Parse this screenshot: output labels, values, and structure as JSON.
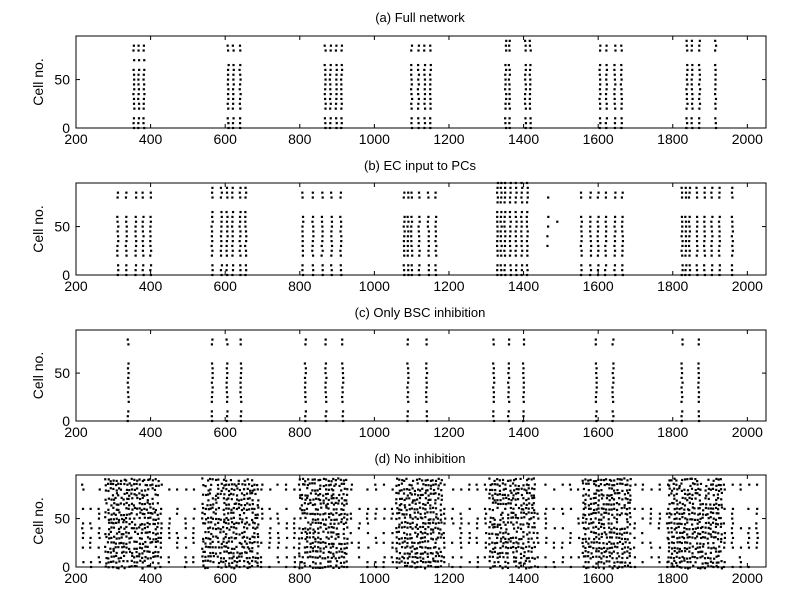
{
  "chart_data": [
    {
      "type": "scatter",
      "title": "(a) Full network",
      "xlabel": "",
      "ylabel": "Cell no.",
      "xlim": [
        200,
        2050
      ],
      "ylim": [
        0,
        95
      ],
      "xticks": [
        200,
        400,
        600,
        800,
        1000,
        1200,
        1400,
        1600,
        1800,
        2000
      ],
      "yticks": [
        0,
        50
      ],
      "grid": false,
      "description": "spike raster",
      "bursts": [
        {
          "times": [
            355,
            368,
            382
          ],
          "cells": [
            0,
            5,
            10,
            20,
            25,
            30,
            35,
            40,
            45,
            50,
            55,
            60,
            70,
            80,
            85
          ]
        },
        {
          "times": [
            608,
            622,
            640
          ],
          "cells": [
            0,
            5,
            10,
            20,
            25,
            30,
            35,
            40,
            45,
            50,
            55,
            60,
            65,
            80,
            85
          ]
        },
        {
          "times": [
            868,
            882,
            898,
            912
          ],
          "cells": [
            0,
            5,
            10,
            20,
            25,
            30,
            35,
            40,
            45,
            50,
            55,
            60,
            65,
            80,
            85
          ]
        },
        {
          "times": [
            1100,
            1118,
            1135,
            1150
          ],
          "cells": [
            0,
            5,
            10,
            20,
            25,
            30,
            35,
            40,
            45,
            50,
            55,
            60,
            65,
            80,
            85
          ]
        },
        {
          "times": [
            1352,
            1362,
            1405,
            1418
          ],
          "cells": [
            0,
            5,
            10,
            20,
            25,
            30,
            35,
            40,
            45,
            50,
            55,
            60,
            65,
            80,
            85,
            90
          ]
        },
        {
          "times": [
            1605,
            1622,
            1645,
            1662
          ],
          "cells": [
            0,
            5,
            10,
            20,
            25,
            30,
            35,
            40,
            45,
            50,
            55,
            60,
            65,
            80,
            85
          ]
        },
        {
          "times": [
            1838,
            1852,
            1872,
            1915
          ],
          "cells": [
            0,
            5,
            10,
            20,
            25,
            30,
            35,
            40,
            45,
            50,
            55,
            60,
            65,
            80,
            85,
            90
          ]
        }
      ]
    },
    {
      "type": "scatter",
      "title": "(b) EC input to PCs",
      "xlabel": "",
      "ylabel": "Cell no.",
      "xlim": [
        200,
        2050
      ],
      "ylim": [
        0,
        95
      ],
      "xticks": [
        200,
        400,
        600,
        800,
        1000,
        1200,
        1400,
        1600,
        1800,
        2000
      ],
      "yticks": [
        0,
        50
      ],
      "grid": false,
      "bursts": [
        {
          "times": [
            312,
            335,
            360,
            380,
            400
          ],
          "cells": [
            0,
            5,
            10,
            20,
            25,
            30,
            35,
            40,
            45,
            50,
            55,
            60,
            80,
            85
          ]
        },
        {
          "times": [
            565,
            590,
            605,
            620,
            640,
            655
          ],
          "cells": [
            0,
            5,
            10,
            20,
            25,
            30,
            35,
            40,
            45,
            50,
            55,
            60,
            65,
            80,
            85,
            90
          ]
        },
        {
          "times": [
            808,
            835,
            860,
            885,
            910
          ],
          "cells": [
            0,
            5,
            10,
            20,
            25,
            30,
            35,
            40,
            45,
            50,
            55,
            60,
            80,
            85
          ]
        },
        {
          "times": [
            1080,
            1090,
            1100,
            1120,
            1145,
            1165
          ],
          "cells": [
            0,
            5,
            10,
            20,
            25,
            30,
            35,
            40,
            45,
            50,
            55,
            60,
            80,
            85
          ]
        },
        {
          "times": [
            1330,
            1340,
            1350,
            1365,
            1380,
            1395,
            1410
          ],
          "cells": [
            0,
            5,
            10,
            20,
            25,
            30,
            35,
            40,
            45,
            50,
            55,
            60,
            65,
            75,
            80,
            85,
            90,
            95
          ]
        },
        {
          "times": [
            1465
          ],
          "cells": [
            30,
            40,
            50,
            60,
            80
          ]
        },
        {
          "times": [
            1490
          ],
          "cells": [
            55
          ]
        },
        {
          "times": [
            1555,
            1580,
            1600,
            1620,
            1645,
            1665
          ],
          "cells": [
            0,
            5,
            10,
            20,
            25,
            30,
            35,
            40,
            45,
            50,
            55,
            60,
            80,
            85
          ]
        },
        {
          "times": [
            1825,
            1835,
            1845,
            1865,
            1885,
            1905,
            1925,
            1960
          ],
          "cells": [
            0,
            5,
            10,
            20,
            25,
            30,
            35,
            40,
            45,
            50,
            55,
            60,
            80,
            85,
            90
          ]
        }
      ]
    },
    {
      "type": "scatter",
      "title": "(c) Only BSC inhibition",
      "xlabel": "",
      "ylabel": "Cell no.",
      "xlim": [
        200,
        2050
      ],
      "ylim": [
        0,
        95
      ],
      "xticks": [
        200,
        400,
        600,
        800,
        1000,
        1200,
        1400,
        1600,
        1800,
        2000
      ],
      "yticks": [
        0,
        50
      ],
      "grid": false,
      "bursts": [
        {
          "times": [
            340
          ],
          "cells": [
            0,
            5,
            10,
            20,
            25,
            30,
            35,
            40,
            45,
            50,
            55,
            60,
            80,
            85
          ]
        },
        {
          "times": [
            565,
            605,
            642
          ],
          "cells": [
            0,
            5,
            10,
            20,
            25,
            30,
            35,
            40,
            45,
            50,
            55,
            60,
            80,
            85
          ]
        },
        {
          "times": [
            815,
            870,
            915
          ],
          "cells": [
            0,
            5,
            10,
            20,
            25,
            30,
            35,
            40,
            45,
            50,
            55,
            60,
            80,
            85
          ]
        },
        {
          "times": [
            1090,
            1140
          ],
          "cells": [
            0,
            5,
            10,
            20,
            25,
            30,
            35,
            40,
            45,
            50,
            55,
            60,
            80,
            85
          ]
        },
        {
          "times": [
            1320,
            1360,
            1400
          ],
          "cells": [
            0,
            5,
            10,
            20,
            25,
            30,
            35,
            40,
            45,
            50,
            55,
            60,
            80,
            85
          ]
        },
        {
          "times": [
            1595,
            1640
          ],
          "cells": [
            0,
            5,
            10,
            20,
            25,
            30,
            35,
            40,
            45,
            50,
            55,
            60,
            80,
            85
          ]
        },
        {
          "times": [
            1825,
            1870
          ],
          "cells": [
            0,
            5,
            10,
            20,
            25,
            30,
            35,
            40,
            45,
            50,
            55,
            60,
            80,
            85
          ]
        }
      ]
    },
    {
      "type": "scatter",
      "title": "(d) No inhibition",
      "xlabel": "",
      "ylabel": "Cell no.",
      "xlim": [
        200,
        2050
      ],
      "ylim": [
        0,
        95
      ],
      "xticks": [
        200,
        400,
        600,
        800,
        1000,
        1200,
        1400,
        1600,
        1800,
        2000
      ],
      "yticks": [
        0,
        50
      ],
      "grid": false,
      "dense_ranges": [
        [
          280,
          420
        ],
        [
          540,
          690
        ],
        [
          800,
          930
        ],
        [
          1060,
          1180
        ],
        [
          1310,
          1430
        ],
        [
          1560,
          1690
        ],
        [
          1790,
          1930
        ]
      ],
      "sparse_ranges": [
        [
          210,
          280
        ],
        [
          420,
          540
        ],
        [
          690,
          800
        ],
        [
          930,
          1060
        ],
        [
          1180,
          1310
        ],
        [
          1430,
          1560
        ],
        [
          1690,
          1790
        ],
        [
          1930,
          2030
        ]
      ]
    }
  ]
}
